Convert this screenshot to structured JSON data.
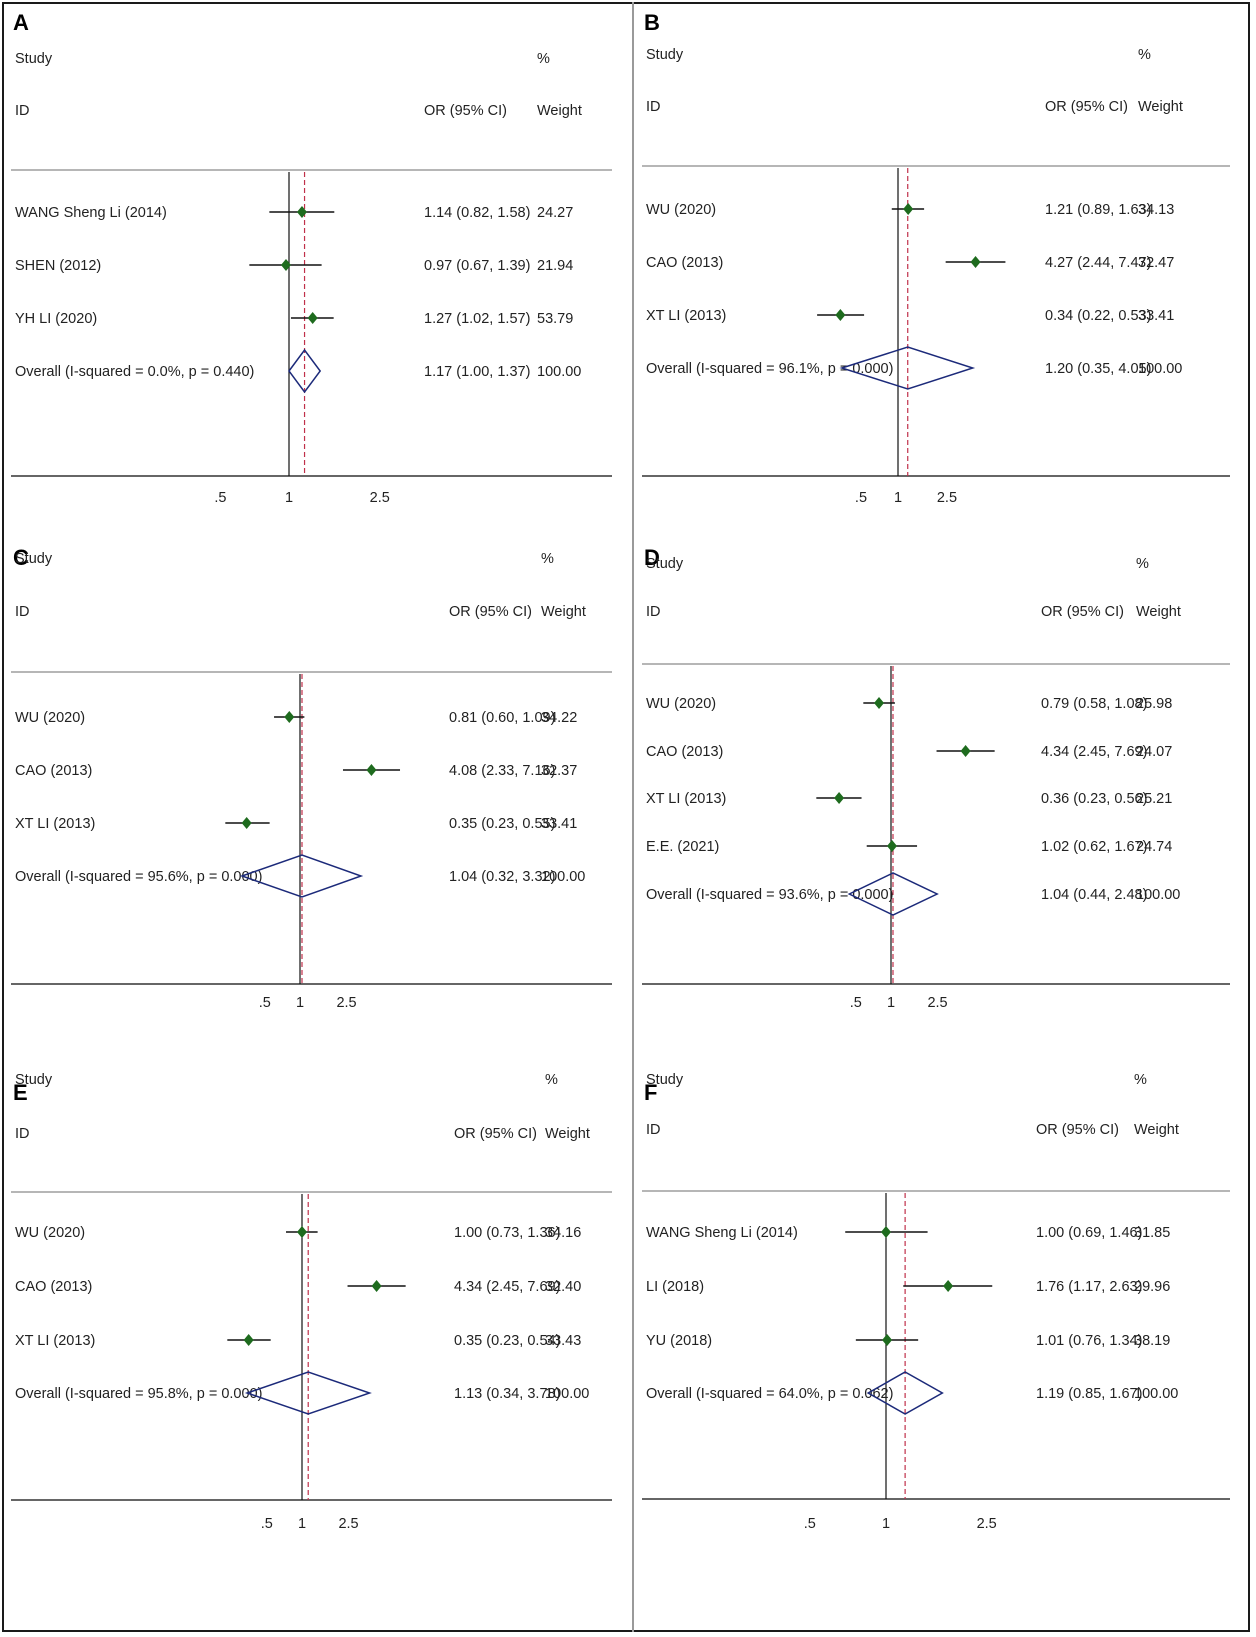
{
  "chart_data": [
    {
      "type": "forest",
      "panel": "A",
      "header": {
        "study": "Study",
        "id": "ID",
        "or": "OR (95% CI)",
        "pct": "%",
        "weight": "Weight"
      },
      "studies": [
        {
          "label": "WANG Sheng Li (2014)",
          "or": 1.14,
          "lo": 0.82,
          "hi": 1.58,
          "ci_text": "1.14 (0.82, 1.58)",
          "weight": "24.27"
        },
        {
          "label": "SHEN (2012)",
          "or": 0.97,
          "lo": 0.67,
          "hi": 1.39,
          "ci_text": "0.97 (0.67, 1.39)",
          "weight": "21.94"
        },
        {
          "label": "YH LI (2020)",
          "or": 1.27,
          "lo": 1.02,
          "hi": 1.57,
          "ci_text": "1.27 (1.02, 1.57)",
          "weight": "53.79"
        }
      ],
      "overall": {
        "label": "Overall  (I-squared = 0.0%, p = 0.440)",
        "or": 1.17,
        "lo": 1.0,
        "hi": 1.37,
        "ci_text": "1.17 (1.00, 1.37)",
        "weight": "100.00"
      },
      "xticks": [
        0.5,
        1,
        2.5
      ],
      "xtick_labels": [
        ".5",
        "1",
        "2.5"
      ]
    },
    {
      "type": "forest",
      "panel": "B",
      "header": {
        "study": "Study",
        "id": "ID",
        "or": "OR (95% CI)",
        "pct": "%",
        "weight": "Weight"
      },
      "studies": [
        {
          "label": "WU (2020)",
          "or": 1.21,
          "lo": 0.89,
          "hi": 1.63,
          "ci_text": "1.21 (0.89, 1.63)",
          "weight": "34.13"
        },
        {
          "label": "CAO (2013)",
          "or": 4.27,
          "lo": 2.44,
          "hi": 7.47,
          "ci_text": "4.27 (2.44, 7.47)",
          "weight": "32.47"
        },
        {
          "label": "XT LI (2013)",
          "or": 0.34,
          "lo": 0.22,
          "hi": 0.53,
          "ci_text": "0.34 (0.22, 0.53)",
          "weight": "33.41"
        }
      ],
      "overall": {
        "label": "Overall  (I-squared = 96.1%, p = 0.000)",
        "or": 1.2,
        "lo": 0.35,
        "hi": 4.05,
        "ci_text": "1.20 (0.35, 4.05)",
        "weight": "100.00"
      },
      "xticks": [
        0.5,
        1,
        2.5
      ],
      "xtick_labels": [
        ".5",
        "1",
        "2.5"
      ]
    },
    {
      "type": "forest",
      "panel": "C",
      "header": {
        "study": "Study",
        "id": "ID",
        "or": "OR (95% CI)",
        "pct": "%",
        "weight": "Weight"
      },
      "studies": [
        {
          "label": "WU (2020)",
          "or": 0.81,
          "lo": 0.6,
          "hi": 1.09,
          "ci_text": "0.81 (0.60, 1.09)",
          "weight": "34.22"
        },
        {
          "label": "CAO (2013)",
          "or": 4.08,
          "lo": 2.33,
          "hi": 7.16,
          "ci_text": "4.08 (2.33, 7.16)",
          "weight": "32.37"
        },
        {
          "label": "XT LI (2013)",
          "or": 0.35,
          "lo": 0.23,
          "hi": 0.55,
          "ci_text": "0.35 (0.23, 0.55)",
          "weight": "33.41"
        }
      ],
      "overall": {
        "label": "Overall  (I-squared = 95.6%, p = 0.000)",
        "or": 1.04,
        "lo": 0.32,
        "hi": 3.32,
        "ci_text": "1.04 (0.32, 3.32)",
        "weight": "100.00"
      },
      "xticks": [
        0.5,
        1,
        2.5
      ],
      "xtick_labels": [
        ".5",
        "1",
        "2.5"
      ]
    },
    {
      "type": "forest",
      "panel": "D",
      "header": {
        "study": "Study",
        "id": "ID",
        "or": "OR (95% CI)",
        "pct": "%",
        "weight": "Weight"
      },
      "studies": [
        {
          "label": "WU  (2020)",
          "or": 0.79,
          "lo": 0.58,
          "hi": 1.08,
          "ci_text": "0.79 (0.58, 1.08)",
          "weight": "25.98"
        },
        {
          "label": "CAO (2013)",
          "or": 4.34,
          "lo": 2.45,
          "hi": 7.69,
          "ci_text": "4.34 (2.45, 7.69)",
          "weight": "24.07"
        },
        {
          "label": "XT LI (2013)",
          "or": 0.36,
          "lo": 0.23,
          "hi": 0.56,
          "ci_text": "0.36 (0.23, 0.56)",
          "weight": "25.21"
        },
        {
          "label": "E.E. (2021)",
          "or": 1.02,
          "lo": 0.62,
          "hi": 1.67,
          "ci_text": "1.02 (0.62, 1.67)",
          "weight": "24.74"
        }
      ],
      "overall": {
        "label": "Overall  (I-squared = 93.6%, p = 0.000)",
        "or": 1.04,
        "lo": 0.44,
        "hi": 2.48,
        "ci_text": "1.04 (0.44, 2.48)",
        "weight": "100.00"
      },
      "xticks": [
        0.5,
        1,
        2.5
      ],
      "xtick_labels": [
        ".5",
        "1",
        "2.5"
      ]
    },
    {
      "type": "forest",
      "panel": "E",
      "header": {
        "study": "Study",
        "id": "ID",
        "or": "OR (95% CI)",
        "pct": "%",
        "weight": "Weight"
      },
      "studies": [
        {
          "label": "WU (2020)",
          "or": 1.0,
          "lo": 0.73,
          "hi": 1.36,
          "ci_text": "1.00 (0.73, 1.36)",
          "weight": "34.16"
        },
        {
          "label": "CAO (2013)",
          "or": 4.34,
          "lo": 2.45,
          "hi": 7.69,
          "ci_text": "4.34 (2.45, 7.69)",
          "weight": "32.40"
        },
        {
          "label": "XT LI (2013)",
          "or": 0.35,
          "lo": 0.23,
          "hi": 0.54,
          "ci_text": "0.35 (0.23, 0.54)",
          "weight": "33.43"
        }
      ],
      "overall": {
        "label": "Overall  (I-squared = 95.8%, p = 0.000)",
        "or": 1.13,
        "lo": 0.34,
        "hi": 3.78,
        "ci_text": "1.13 (0.34, 3.78)",
        "weight": "100.00"
      },
      "xticks": [
        0.5,
        1,
        2.5
      ],
      "xtick_labels": [
        ".5",
        "1",
        "2.5"
      ]
    },
    {
      "type": "forest",
      "panel": "F",
      "header": {
        "study": "Study",
        "id": "ID",
        "or": "OR (95% CI)",
        "pct": "%",
        "weight": "Weight"
      },
      "studies": [
        {
          "label": "WANG Sheng Li (2014)",
          "or": 1.0,
          "lo": 0.69,
          "hi": 1.46,
          "ci_text": "1.00 (0.69, 1.46)",
          "weight": "31.85"
        },
        {
          "label": "LI (2018)",
          "or": 1.76,
          "lo": 1.17,
          "hi": 2.63,
          "ci_text": "1.76 (1.17, 2.63)",
          "weight": "29.96"
        },
        {
          "label": "YU (2018)",
          "or": 1.01,
          "lo": 0.76,
          "hi": 1.34,
          "ci_text": "1.01 (0.76, 1.34)",
          "weight": "38.19"
        }
      ],
      "overall": {
        "label": "Overall  (I-squared = 64.0%, p = 0.062)",
        "or": 1.19,
        "lo": 0.85,
        "hi": 1.67,
        "ci_text": "1.19 (0.85, 1.67)",
        "weight": "100.00"
      },
      "xticks": [
        0.5,
        1,
        2.5
      ],
      "xtick_labels": [
        ".5",
        "1",
        "2.5"
      ]
    }
  ],
  "colors": {
    "marker": "#1e6b1e",
    "diamond": "#1c2a7a",
    "line": "#111111",
    "dashed": "#c0304a",
    "rule": "#9e9e9e"
  }
}
